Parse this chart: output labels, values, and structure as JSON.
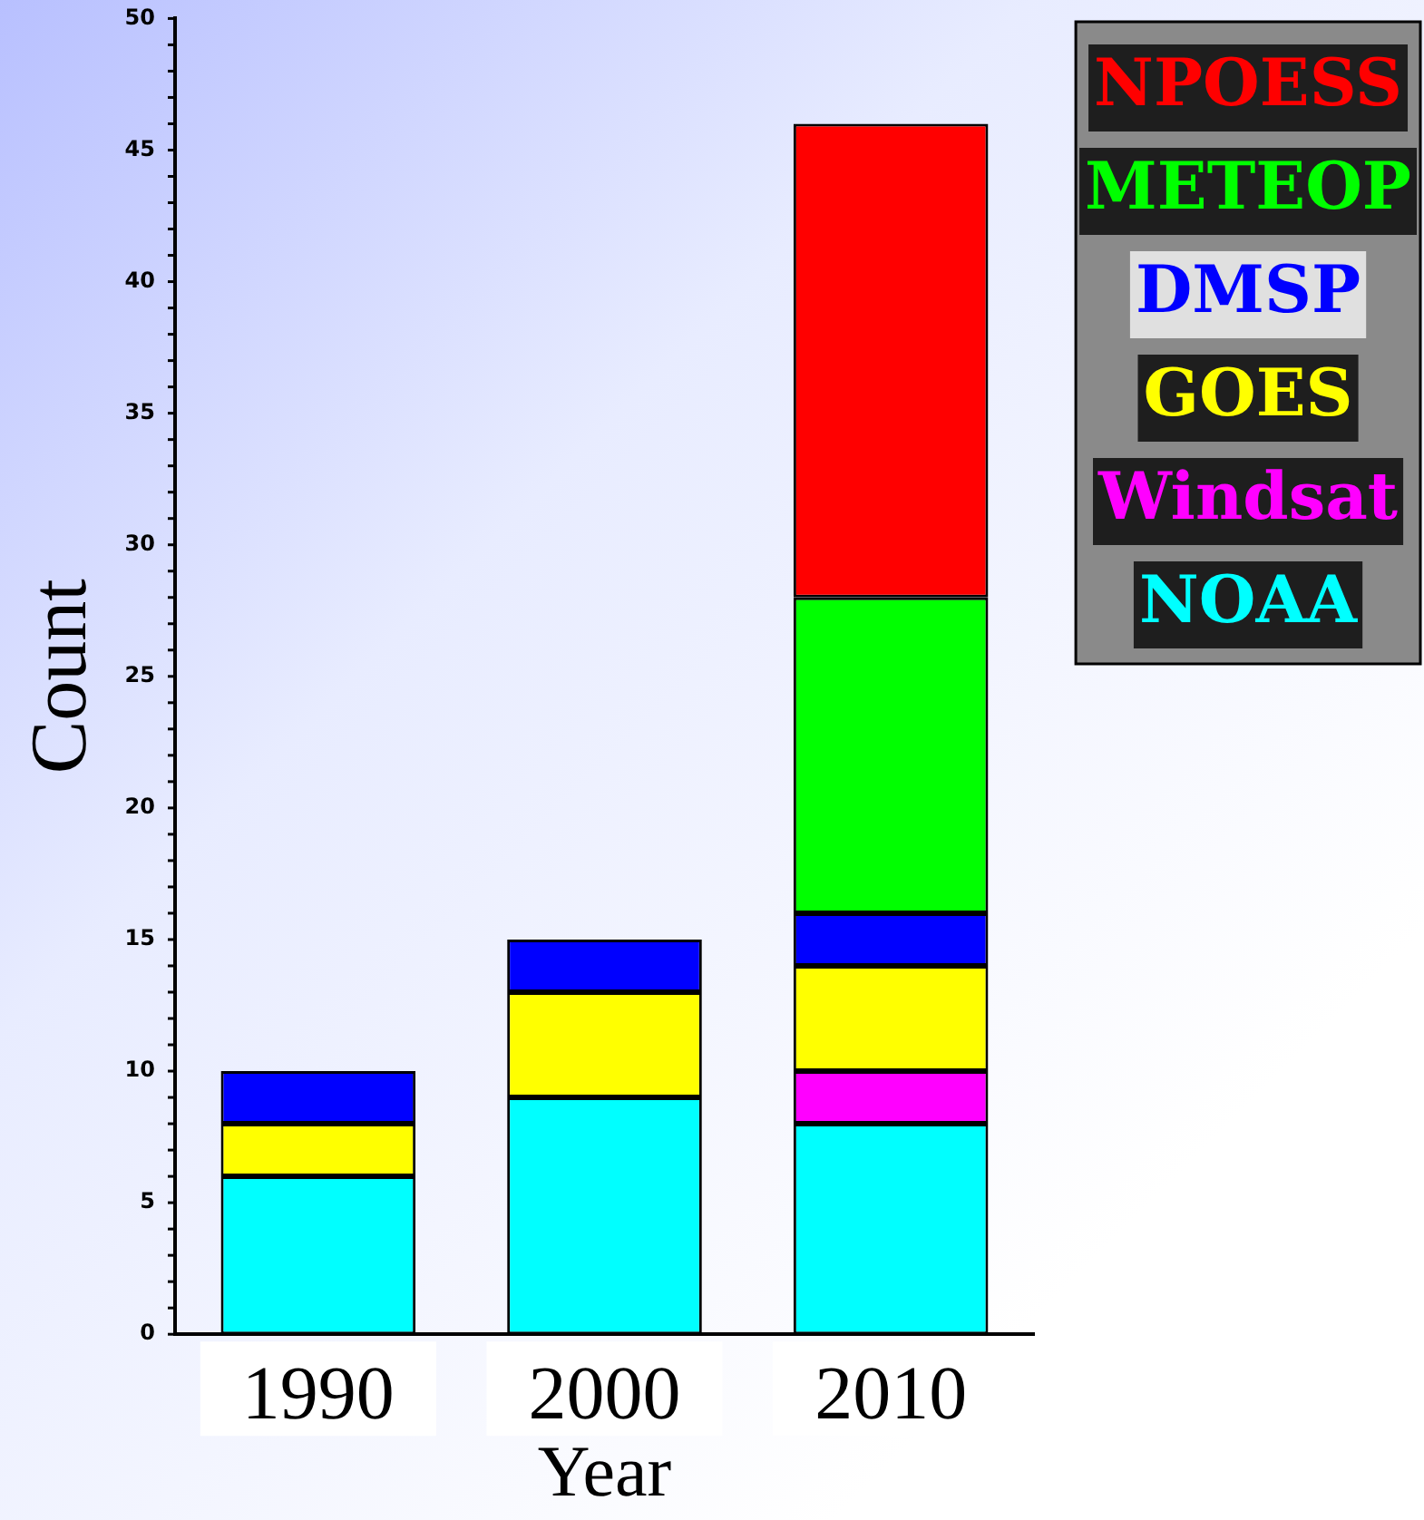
{
  "chart_data": {
    "type": "bar",
    "stacked": true,
    "xlabel": "Year",
    "ylabel": "Count",
    "categories": [
      "1990",
      "2000",
      "2010"
    ],
    "series": [
      {
        "name": "NOAA",
        "color": "#00ffff",
        "values": [
          6,
          9,
          8
        ]
      },
      {
        "name": "Windsat",
        "color": "#ff00ff",
        "values": [
          0,
          0,
          2
        ]
      },
      {
        "name": "GOES",
        "color": "#ffff00",
        "values": [
          2,
          4,
          4
        ]
      },
      {
        "name": "DMSP",
        "color": "#0000ff",
        "values": [
          2,
          2,
          2
        ]
      },
      {
        "name": "METEOP",
        "color": "#00ff00",
        "values": [
          0,
          0,
          12
        ]
      },
      {
        "name": "NPOESS",
        "color": "#ff0000",
        "values": [
          0,
          0,
          18
        ]
      }
    ],
    "ylim": [
      0,
      50
    ],
    "yticks": [
      0,
      5,
      10,
      15,
      20,
      25,
      30,
      35,
      40,
      45,
      50
    ],
    "grid": false,
    "legend": "top right"
  }
}
